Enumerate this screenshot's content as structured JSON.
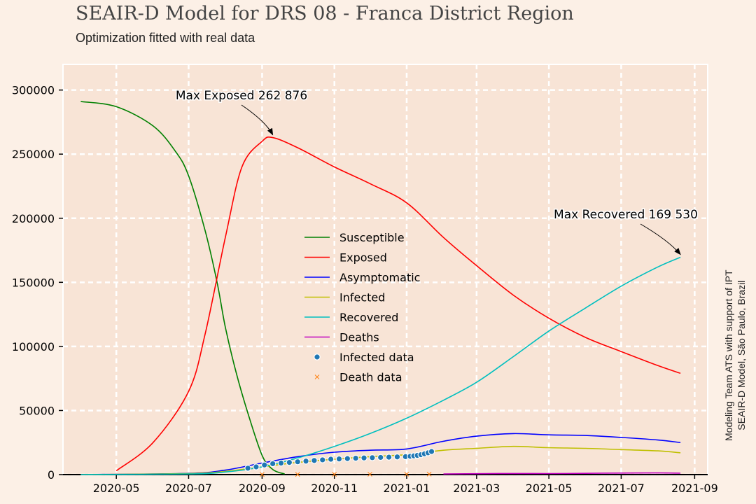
{
  "title": "SEAIR-D Model for DRS 08 - Franca District Region",
  "subtitle": "Optimization fitted with real data",
  "side_note": {
    "line1": "Modeling Team ATS with support of IPT",
    "line2": "SEAIR-D Model, São Paulo, Brazil"
  },
  "chart_data": {
    "type": "line",
    "title": "SEAIR-D Model for DRS 08 - Franca District Region",
    "subtitle": "Optimization fitted with real data",
    "xlabel": "",
    "ylabel": "",
    "xlim": [
      "2020-03-17",
      "2021-09-12"
    ],
    "ylim": [
      0,
      320000
    ],
    "x_ticks": [
      "2020-05",
      "2020-07",
      "2020-09",
      "2020-11",
      "2021-01",
      "2021-03",
      "2021-05",
      "2021-07",
      "2021-09"
    ],
    "y_ticks": [
      0,
      50000,
      100000,
      150000,
      200000,
      250000,
      300000
    ],
    "grid": true,
    "legend_position": "center",
    "series": [
      {
        "name": "Susceptible",
        "color": "#008000",
        "dates": [
          "2020-04-01",
          "2020-05-01",
          "2020-06-01",
          "2020-06-20",
          "2020-07-01",
          "2020-07-15",
          "2020-07-25",
          "2020-08-01",
          "2020-08-10",
          "2020-08-20",
          "2020-09-01",
          "2020-09-10",
          "2020-09-20"
        ],
        "values": [
          291000,
          287000,
          272000,
          252000,
          233000,
          190000,
          150000,
          115000,
          80000,
          48000,
          15000,
          4000,
          500
        ]
      },
      {
        "name": "Exposed",
        "color": "#ff0000",
        "dates": [
          "2020-05-01",
          "2020-06-01",
          "2020-07-01",
          "2020-07-15",
          "2020-08-01",
          "2020-08-15",
          "2020-09-01",
          "2020-09-10",
          "2020-10-01",
          "2020-11-01",
          "2020-12-01",
          "2021-01-01",
          "2021-02-01",
          "2021-03-01",
          "2021-04-01",
          "2021-05-01",
          "2021-06-01",
          "2021-07-01",
          "2021-08-01",
          "2021-08-20"
        ],
        "values": [
          3000,
          25000,
          65000,
          110000,
          185000,
          240000,
          260000,
          262876,
          255000,
          240000,
          227000,
          212000,
          185000,
          163000,
          140000,
          122000,
          107000,
          96000,
          85000,
          79000
        ]
      },
      {
        "name": "Asymptomatic",
        "color": "#0000ff",
        "dates": [
          "2020-04-01",
          "2020-07-01",
          "2020-08-01",
          "2020-09-01",
          "2020-10-01",
          "2020-11-01",
          "2020-12-01",
          "2021-01-01",
          "2021-02-01",
          "2021-03-01",
          "2021-04-01",
          "2021-05-01",
          "2021-06-01",
          "2021-07-01",
          "2021-08-01",
          "2021-08-20"
        ],
        "values": [
          0,
          1000,
          3500,
          9000,
          14000,
          17500,
          19000,
          20000,
          26000,
          30000,
          32000,
          31000,
          30500,
          29000,
          27000,
          25000
        ]
      },
      {
        "name": "Infected",
        "color": "#bfbf00",
        "dates": [
          "2020-04-01",
          "2020-07-01",
          "2020-08-01",
          "2020-09-01",
          "2020-10-01",
          "2020-11-01",
          "2020-12-01",
          "2021-01-01",
          "2021-02-01",
          "2021-03-01",
          "2021-04-01",
          "2021-05-01",
          "2021-06-01",
          "2021-07-01",
          "2021-08-01",
          "2021-08-20"
        ],
        "values": [
          0,
          800,
          2500,
          6000,
          9500,
          12000,
          14000,
          15500,
          19000,
          20500,
          22000,
          21000,
          20500,
          19500,
          18500,
          17000
        ]
      },
      {
        "name": "Recovered",
        "color": "#00bfbf",
        "dates": [
          "2020-04-01",
          "2020-07-01",
          "2020-08-01",
          "2020-09-01",
          "2020-10-01",
          "2020-11-01",
          "2020-12-01",
          "2021-01-01",
          "2021-02-01",
          "2021-03-01",
          "2021-04-01",
          "2021-05-01",
          "2021-06-01",
          "2021-07-01",
          "2021-08-01",
          "2021-08-20"
        ],
        "values": [
          0,
          500,
          2000,
          6000,
          13000,
          22000,
          32000,
          44000,
          58000,
          72000,
          92000,
          112000,
          130000,
          147000,
          162000,
          169530
        ]
      },
      {
        "name": "Deaths",
        "color": "#bf00bf",
        "dates": [
          "2021-02-01",
          "2021-03-01",
          "2021-04-01",
          "2021-05-01",
          "2021-06-01",
          "2021-07-01",
          "2021-08-01",
          "2021-08-20"
        ],
        "values": [
          500,
          700,
          900,
          800,
          1000,
          1200,
          1300,
          1100
        ]
      }
    ],
    "scatter_series": [
      {
        "name": "Infected data",
        "color": "#1f77b4",
        "marker": "circle",
        "dates": [
          "2020-08-20",
          "2020-08-27",
          "2020-09-03",
          "2020-09-10",
          "2020-09-17",
          "2020-09-24",
          "2020-10-01",
          "2020-10-08",
          "2020-10-15",
          "2020-10-22",
          "2020-10-29",
          "2020-11-05",
          "2020-11-12",
          "2020-11-19",
          "2020-11-26",
          "2020-12-03",
          "2020-12-10",
          "2020-12-17",
          "2020-12-24",
          "2020-12-31",
          "2021-01-04",
          "2021-01-07",
          "2021-01-10",
          "2021-01-13",
          "2021-01-16",
          "2021-01-19",
          "2021-01-22"
        ],
        "values": [
          5000,
          6000,
          7500,
          8500,
          9000,
          9500,
          10000,
          10500,
          11000,
          11500,
          12000,
          12200,
          12500,
          12800,
          13000,
          13200,
          13400,
          13600,
          13800,
          14000,
          14300,
          14600,
          15000,
          15500,
          16200,
          17000,
          18000
        ]
      },
      {
        "name": "Death data",
        "color": "#ff7f0e",
        "marker": "x",
        "dates": [
          "2020-09-01",
          "2020-10-01",
          "2020-11-01",
          "2020-12-01",
          "2021-01-01",
          "2021-01-20"
        ],
        "values": [
          100,
          150,
          200,
          250,
          300,
          350
        ]
      }
    ],
    "annotations": [
      {
        "label": "Max Exposed",
        "value": "262 876",
        "date": "2020-09-10",
        "y": 262876
      },
      {
        "label": "Max Recovered",
        "value": "169 530",
        "date": "2021-08-20",
        "y": 169530
      }
    ]
  }
}
